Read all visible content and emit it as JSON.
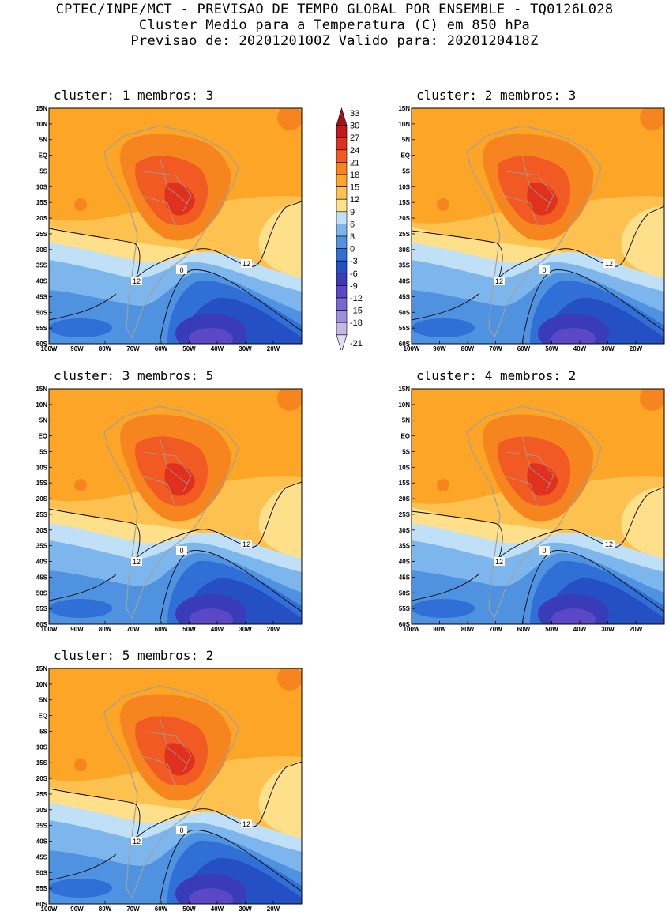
{
  "header": {
    "line1": "CPTEC/INPE/MCT - PREVISAO DE TEMPO GLOBAL POR ENSEMBLE - TQ0126L028",
    "line2": "Cluster Medio para a Temperatura (C) em 850 hPa",
    "line3": "Previsao de: 2020120100Z   Valido para: 2020120418Z"
  },
  "axes": {
    "lat_labels": [
      "15N",
      "10N",
      "5N",
      "EQ",
      "5S",
      "10S",
      "15S",
      "20S",
      "25S",
      "30S",
      "35S",
      "40S",
      "45S",
      "50S",
      "55S",
      "60S"
    ],
    "lon_labels": [
      "100W",
      "90W",
      "80W",
      "70W",
      "60W",
      "50W",
      "40W",
      "30W",
      "20W"
    ]
  },
  "legend": {
    "levels": [
      "33",
      "30",
      "27",
      "24",
      "21",
      "18",
      "15",
      "12",
      "9",
      "6",
      "3",
      "0",
      "-3",
      "-6",
      "-9",
      "-12",
      "-15",
      "-18",
      "-21"
    ],
    "colors": [
      "#a50f15",
      "#c8141e",
      "#e0301e",
      "#f15a22",
      "#f7851f",
      "#fca526",
      "#fdc150",
      "#fee08b",
      "#bfe0f7",
      "#7db6ec",
      "#4f93e0",
      "#2f6fd6",
      "#2450c4",
      "#3a3bb8",
      "#5a48c6",
      "#7a68d2",
      "#9b8fdf",
      "#c2b8ec",
      "#e2dcf6"
    ]
  },
  "contour_labels": {
    "warm": "12",
    "zero": "0"
  },
  "clusters": [
    {
      "label": "cluster: 1   membros: 3"
    },
    {
      "label": "cluster: 2   membros: 3"
    },
    {
      "label": "cluster: 3   membros: 5"
    },
    {
      "label": "cluster: 4   membros: 2"
    },
    {
      "label": "cluster: 5   membros: 2"
    }
  ]
}
